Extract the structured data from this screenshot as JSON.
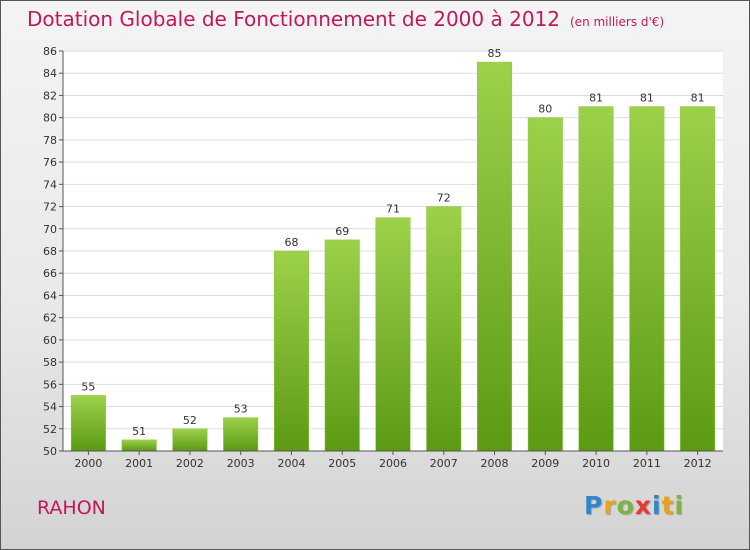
{
  "title": "Dotation Globale de Fonctionnement de 2000 à 2012",
  "unit": "(en milliers d'€)",
  "commune": "RAHON",
  "logo": {
    "letters": [
      "P",
      "r",
      "o",
      "x",
      "i",
      "t",
      "i"
    ],
    "colors": [
      "#2f86c8",
      "#e8a317",
      "#7cb342",
      "#e53935",
      "#2f86c8",
      "#e8a317",
      "#7cb342"
    ]
  },
  "colors": {
    "title": "#c2185b",
    "bar_top": "#9dd14a",
    "bar_bottom": "#5c9a14",
    "label": "#333333"
  },
  "chart_data": {
    "type": "bar",
    "categories": [
      "2000",
      "2001",
      "2002",
      "2003",
      "2004",
      "2005",
      "2006",
      "2007",
      "2008",
      "2009",
      "2010",
      "2011",
      "2012"
    ],
    "values": [
      55,
      51,
      52,
      53,
      68,
      69,
      71,
      72,
      85,
      80,
      81,
      81,
      81
    ],
    "ylim": [
      50,
      86
    ],
    "ytick_step": 2,
    "grid": true,
    "data_labels": true
  }
}
